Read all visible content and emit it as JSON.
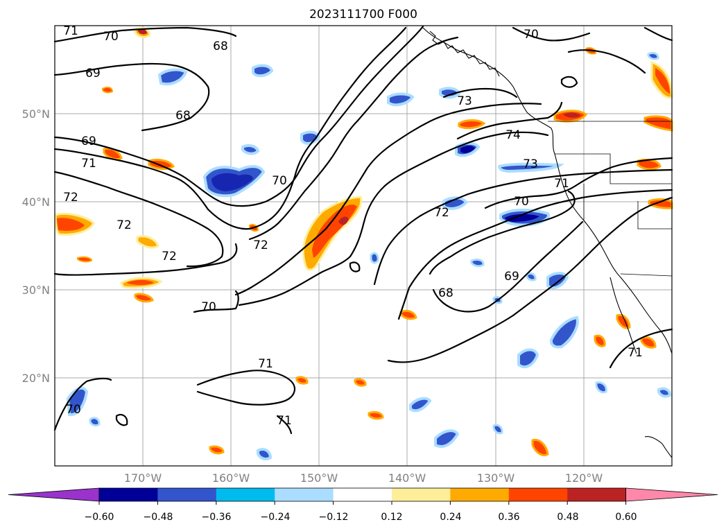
{
  "title": "2023111700 F000",
  "map": {
    "lat_ticks": [
      "20°N",
      "30°N",
      "40°N",
      "50°N"
    ],
    "lon_ticks": [
      "170°W",
      "160°W",
      "150°W",
      "140°W",
      "130°W",
      "120°W"
    ],
    "grid": true,
    "contour_color": "#000000"
  },
  "contours": [
    {
      "label": "71",
      "pos": "top-left"
    },
    {
      "label": "70",
      "pos": "top-left"
    },
    {
      "label": "69",
      "pos": "upper-left"
    },
    {
      "label": "68",
      "pos": "upper-left"
    },
    {
      "label": "69",
      "pos": "left"
    },
    {
      "label": "71",
      "pos": "left"
    },
    {
      "label": "72",
      "pos": "left"
    },
    {
      "label": "72",
      "pos": "left"
    },
    {
      "label": "72",
      "pos": "left-center"
    },
    {
      "label": "72",
      "pos": "center"
    },
    {
      "label": "70",
      "pos": "center"
    },
    {
      "label": "70",
      "pos": "lower-left"
    },
    {
      "label": "68",
      "pos": "top-center"
    },
    {
      "label": "73",
      "pos": "upper-right"
    },
    {
      "label": "74",
      "pos": "upper-right"
    },
    {
      "label": "73",
      "pos": "right"
    },
    {
      "label": "71",
      "pos": "right"
    },
    {
      "label": "70",
      "pos": "right"
    },
    {
      "label": "72",
      "pos": "center-right"
    },
    {
      "label": "69",
      "pos": "lower-right"
    },
    {
      "label": "68",
      "pos": "lower-right"
    },
    {
      "label": "71",
      "pos": "bottom-center"
    },
    {
      "label": "71",
      "pos": "bottom-center"
    },
    {
      "label": "70",
      "pos": "bottom-left"
    },
    {
      "label": "71",
      "pos": "bottom-right"
    },
    {
      "label": "70",
      "pos": "top-right"
    }
  ],
  "colorbar": {
    "colors": [
      "#9933cc",
      "#000099",
      "#3355cc",
      "#00bbee",
      "#aaddff",
      "#ffffff",
      "#ffee99",
      "#ffaa00",
      "#ff4400",
      "#bb2222",
      "#ff88aa"
    ],
    "tick_labels": [
      "−0.60",
      "−0.48",
      "−0.36",
      "−0.24",
      "−0.12",
      "0.12",
      "0.24",
      "0.36",
      "0.48",
      "0.60"
    ],
    "extend": "both"
  }
}
